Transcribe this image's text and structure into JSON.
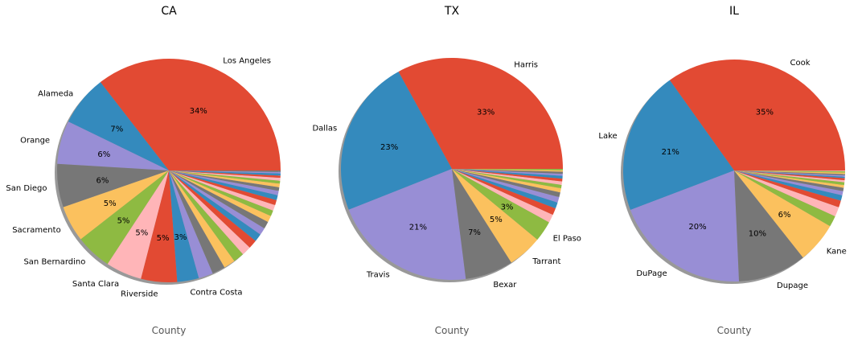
{
  "chart_data": [
    {
      "type": "pie",
      "title": "CA",
      "xlabel": "County",
      "slices": [
        {
          "label": "Los Angeles",
          "value": 34,
          "pct": "34%"
        },
        {
          "label": "Alameda",
          "value": 7,
          "pct": "7%"
        },
        {
          "label": "Orange",
          "value": 6,
          "pct": "6%"
        },
        {
          "label": "San Diego",
          "value": 6,
          "pct": "6%"
        },
        {
          "label": "Sacramento",
          "value": 5,
          "pct": "5%"
        },
        {
          "label": "San Bernardino",
          "value": 5,
          "pct": "5%"
        },
        {
          "label": "Santa Clara",
          "value": 5,
          "pct": "5%"
        },
        {
          "label": "Riverside",
          "value": 5,
          "pct": "5%"
        },
        {
          "label": "Contra Costa",
          "value": 3,
          "pct": "3%"
        },
        {
          "label": "",
          "value": 2,
          "pct": ""
        },
        {
          "label": "",
          "value": 1.8,
          "pct": ""
        },
        {
          "label": "",
          "value": 1.6,
          "pct": ""
        },
        {
          "label": "",
          "value": 1.5,
          "pct": ""
        },
        {
          "label": "",
          "value": 1.3,
          "pct": ""
        },
        {
          "label": "",
          "value": 1.2,
          "pct": ""
        },
        {
          "label": "",
          "value": 1.1,
          "pct": ""
        },
        {
          "label": "",
          "value": 1.0,
          "pct": ""
        },
        {
          "label": "",
          "value": 1.0,
          "pct": ""
        },
        {
          "label": "",
          "value": 0.9,
          "pct": ""
        },
        {
          "label": "",
          "value": 0.8,
          "pct": ""
        },
        {
          "label": "",
          "value": 0.8,
          "pct": ""
        },
        {
          "label": "",
          "value": 0.7,
          "pct": ""
        },
        {
          "label": "",
          "value": 0.7,
          "pct": ""
        },
        {
          "label": "",
          "value": 0.6,
          "pct": ""
        },
        {
          "label": "",
          "value": 0.5,
          "pct": ""
        },
        {
          "label": "",
          "value": 0.5,
          "pct": ""
        },
        {
          "label": "",
          "value": 0.4,
          "pct": ""
        },
        {
          "label": "",
          "value": 0.4,
          "pct": ""
        },
        {
          "label": "",
          "value": 0.3,
          "pct": ""
        },
        {
          "label": "",
          "value": 0.3,
          "pct": ""
        },
        {
          "label": "",
          "value": 0.2,
          "pct": ""
        },
        {
          "label": "",
          "value": 0.2,
          "pct": ""
        }
      ]
    },
    {
      "type": "pie",
      "title": "TX",
      "xlabel": "County",
      "slices": [
        {
          "label": "Harris",
          "value": 33,
          "pct": "33%"
        },
        {
          "label": "Dallas",
          "value": 23,
          "pct": "23%"
        },
        {
          "label": "Travis",
          "value": 21,
          "pct": "21%"
        },
        {
          "label": "Bexar",
          "value": 7,
          "pct": "7%"
        },
        {
          "label": "Tarrant",
          "value": 5,
          "pct": "5%"
        },
        {
          "label": "El Paso",
          "value": 3,
          "pct": "3%"
        },
        {
          "label": "",
          "value": 1.2,
          "pct": ""
        },
        {
          "label": "",
          "value": 1.0,
          "pct": ""
        },
        {
          "label": "",
          "value": 0.9,
          "pct": ""
        },
        {
          "label": "",
          "value": 0.8,
          "pct": ""
        },
        {
          "label": "",
          "value": 0.7,
          "pct": ""
        },
        {
          "label": "",
          "value": 0.6,
          "pct": ""
        },
        {
          "label": "",
          "value": 0.5,
          "pct": ""
        },
        {
          "label": "",
          "value": 0.5,
          "pct": ""
        },
        {
          "label": "",
          "value": 0.4,
          "pct": ""
        },
        {
          "label": "",
          "value": 0.4,
          "pct": ""
        },
        {
          "label": "",
          "value": 0.3,
          "pct": ""
        },
        {
          "label": "",
          "value": 0.3,
          "pct": ""
        },
        {
          "label": "",
          "value": 0.2,
          "pct": ""
        },
        {
          "label": "",
          "value": 0.2,
          "pct": ""
        }
      ]
    },
    {
      "type": "pie",
      "title": "IL",
      "xlabel": "County",
      "slices": [
        {
          "label": "Cook",
          "value": 35,
          "pct": "35%"
        },
        {
          "label": "Lake",
          "value": 21,
          "pct": "21%"
        },
        {
          "label": "DuPage",
          "value": 20,
          "pct": "20%"
        },
        {
          "label": "Dupage",
          "value": 10,
          "pct": "10%"
        },
        {
          "label": "Kane",
          "value": 6,
          "pct": "6%"
        },
        {
          "label": "",
          "value": 1.6,
          "pct": ""
        },
        {
          "label": "",
          "value": 1.4,
          "pct": ""
        },
        {
          "label": "",
          "value": 1.0,
          "pct": ""
        },
        {
          "label": "",
          "value": 0.8,
          "pct": ""
        },
        {
          "label": "",
          "value": 0.6,
          "pct": ""
        },
        {
          "label": "",
          "value": 0.5,
          "pct": ""
        },
        {
          "label": "",
          "value": 0.4,
          "pct": ""
        },
        {
          "label": "",
          "value": 0.4,
          "pct": ""
        },
        {
          "label": "",
          "value": 0.3,
          "pct": ""
        },
        {
          "label": "",
          "value": 0.3,
          "pct": ""
        },
        {
          "label": "",
          "value": 0.2,
          "pct": ""
        },
        {
          "label": "",
          "value": 0.2,
          "pct": ""
        },
        {
          "label": "",
          "value": 0.2,
          "pct": ""
        },
        {
          "label": "",
          "value": 0.2,
          "pct": ""
        },
        {
          "label": "",
          "value": 0.2,
          "pct": ""
        },
        {
          "label": "",
          "value": 0.1,
          "pct": ""
        }
      ]
    }
  ],
  "style": {
    "palette": [
      "#E24A33",
      "#348ABD",
      "#988ED5",
      "#777777",
      "#FBC15E",
      "#8EBA42",
      "#FFB5B8"
    ],
    "shadow_color": "#999999",
    "title_color": "#000000",
    "xlabel_color": "#555555"
  }
}
